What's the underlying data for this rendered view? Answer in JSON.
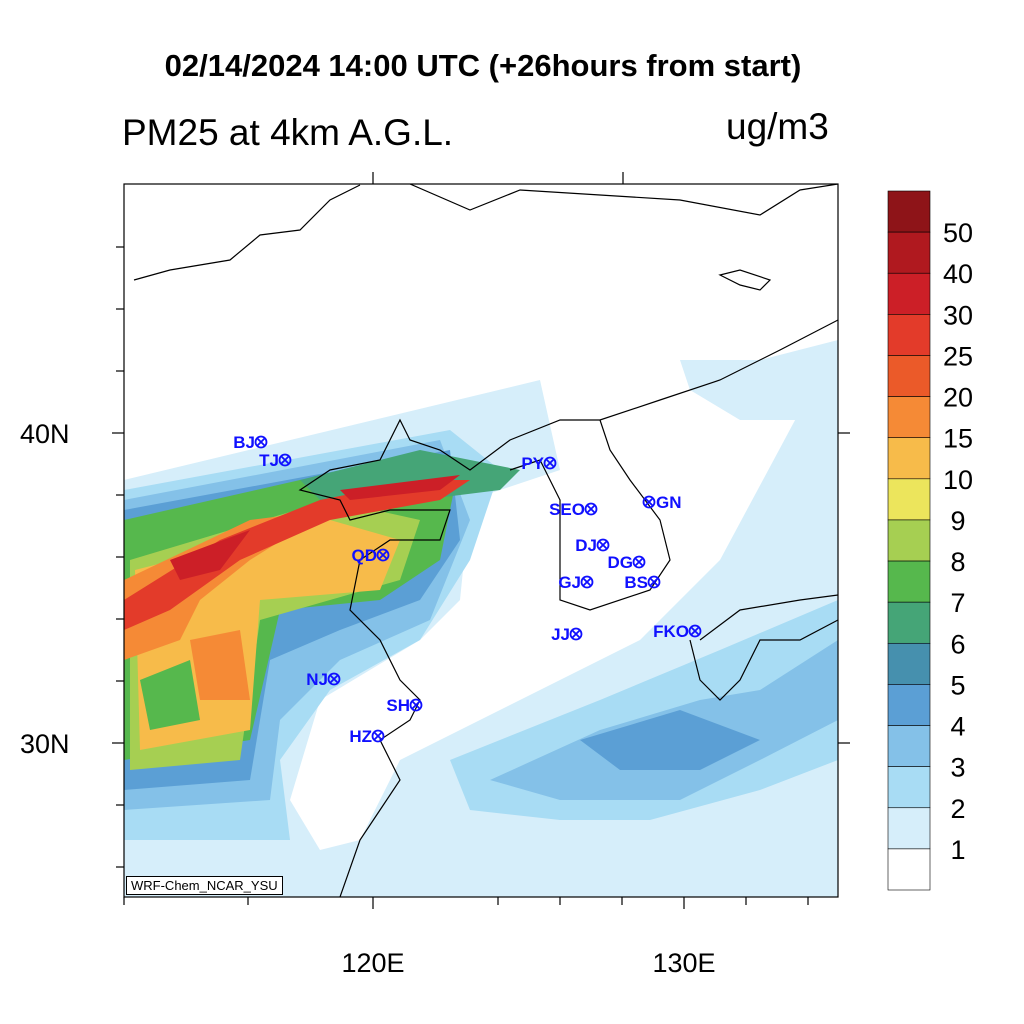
{
  "header": {
    "title": "02/14/2024 14:00 UTC (+26hours from start)",
    "subtitle": "PM25 at 4km A.G.L.",
    "units": "ug/m3"
  },
  "axes": {
    "x_ticks": [
      {
        "lon": 120,
        "label": "120E"
      },
      {
        "lon": 130,
        "label": "130E"
      }
    ],
    "y_ticks": [
      {
        "lat": 40,
        "label": "40N"
      },
      {
        "lat": 30,
        "label": "30N"
      }
    ]
  },
  "colorbar": {
    "labels": [
      "1",
      "2",
      "3",
      "4",
      "5",
      "6",
      "7",
      "8",
      "9",
      "10",
      "15",
      "20",
      "25",
      "30",
      "40",
      "50"
    ],
    "colors": [
      "#ffffff",
      "#d6eefa",
      "#a8dcf4",
      "#84c1e8",
      "#5b9fd5",
      "#4690ae",
      "#45a577",
      "#56b84d",
      "#a6cf52",
      "#ece55c",
      "#f7bb4a",
      "#f58a36",
      "#eb5a29",
      "#e33b2a",
      "#cc1f27",
      "#b0191f",
      "#8e1418"
    ]
  },
  "stations": [
    {
      "code": "BJ"
    },
    {
      "code": "TJ"
    },
    {
      "code": "PY"
    },
    {
      "code": "SEO"
    },
    {
      "code": "GN"
    },
    {
      "code": "DJ"
    },
    {
      "code": "DG"
    },
    {
      "code": "BS"
    },
    {
      "code": "GJ"
    },
    {
      "code": "JJ"
    },
    {
      "code": "FKO"
    },
    {
      "code": "QD"
    },
    {
      "code": "NJ"
    },
    {
      "code": "SH"
    },
    {
      "code": "HZ"
    }
  ],
  "credit": "WRF-Chem_NCAR_YSU"
}
